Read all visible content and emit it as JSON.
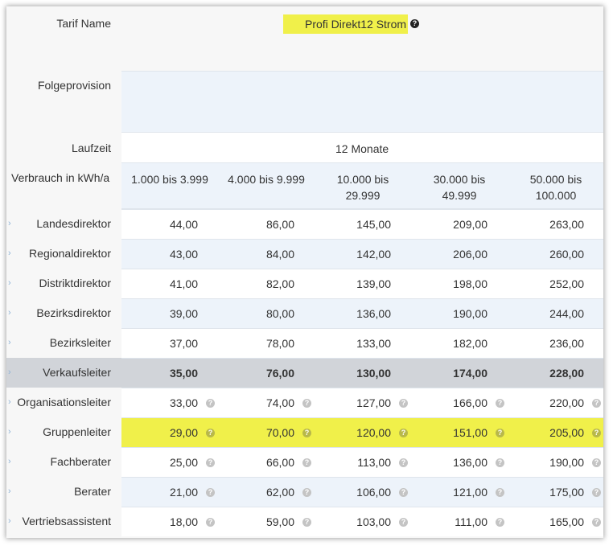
{
  "tariff": {
    "label": "Tarif Name",
    "name": "Profi Direkt12 Strom",
    "info_icon": "question-circle-icon"
  },
  "follow_commission": {
    "label": "Folgeprovision",
    "value": ""
  },
  "term": {
    "label": "Laufzeit",
    "value": "12 Monate"
  },
  "consumption": {
    "label": "Verbrauch in kWh/a",
    "ranges": [
      [
        "1.000 bis 3.999"
      ],
      [
        "4.000 bis 9.999"
      ],
      [
        "10.000 bis",
        "29.999"
      ],
      [
        "30.000 bis",
        "49.999"
      ],
      [
        "50.000 bis",
        "100.000"
      ]
    ]
  },
  "levels": [
    {
      "name": "Landesdirektor",
      "values": [
        "44,00",
        "86,00",
        "145,00",
        "209,00",
        "263,00"
      ],
      "info": false,
      "highlight": "none",
      "bold": false
    },
    {
      "name": "Regionaldirektor",
      "values": [
        "43,00",
        "84,00",
        "142,00",
        "206,00",
        "260,00"
      ],
      "info": false,
      "highlight": "none",
      "bold": false
    },
    {
      "name": "Distriktdirektor",
      "values": [
        "41,00",
        "82,00",
        "139,00",
        "198,00",
        "252,00"
      ],
      "info": false,
      "highlight": "none",
      "bold": false
    },
    {
      "name": "Bezirksdirektor",
      "values": [
        "39,00",
        "80,00",
        "136,00",
        "190,00",
        "244,00"
      ],
      "info": false,
      "highlight": "none",
      "bold": false
    },
    {
      "name": "Bezirksleiter",
      "values": [
        "37,00",
        "78,00",
        "133,00",
        "182,00",
        "236,00"
      ],
      "info": false,
      "highlight": "none",
      "bold": false
    },
    {
      "name": "Verkaufsleiter",
      "values": [
        "35,00",
        "76,00",
        "130,00",
        "174,00",
        "228,00"
      ],
      "info": false,
      "highlight": "current",
      "bold": true
    },
    {
      "name": "Organisationsleiter",
      "values": [
        "33,00",
        "74,00",
        "127,00",
        "166,00",
        "220,00"
      ],
      "info": true,
      "highlight": "none",
      "bold": false
    },
    {
      "name": "Gruppenleiter",
      "values": [
        "29,00",
        "70,00",
        "120,00",
        "151,00",
        "205,00"
      ],
      "info": true,
      "highlight": "yellow",
      "bold": false
    },
    {
      "name": "Fachberater",
      "values": [
        "25,00",
        "66,00",
        "113,00",
        "136,00",
        "190,00"
      ],
      "info": true,
      "highlight": "none",
      "bold": false
    },
    {
      "name": "Berater",
      "values": [
        "21,00",
        "62,00",
        "106,00",
        "121,00",
        "175,00"
      ],
      "info": true,
      "highlight": "none",
      "bold": false
    },
    {
      "name": "Vertriebsassistent",
      "values": [
        "18,00",
        "59,00",
        "103,00",
        "111,00",
        "165,00"
      ],
      "info": true,
      "highlight": "none",
      "bold": false
    }
  ],
  "colors": {
    "yellow_highlight": "#f0f04a",
    "current_row": "#d1d4d9",
    "stripe": "#edf3fa",
    "white": "#ffffff",
    "label_bg": "#f7f7f7"
  }
}
